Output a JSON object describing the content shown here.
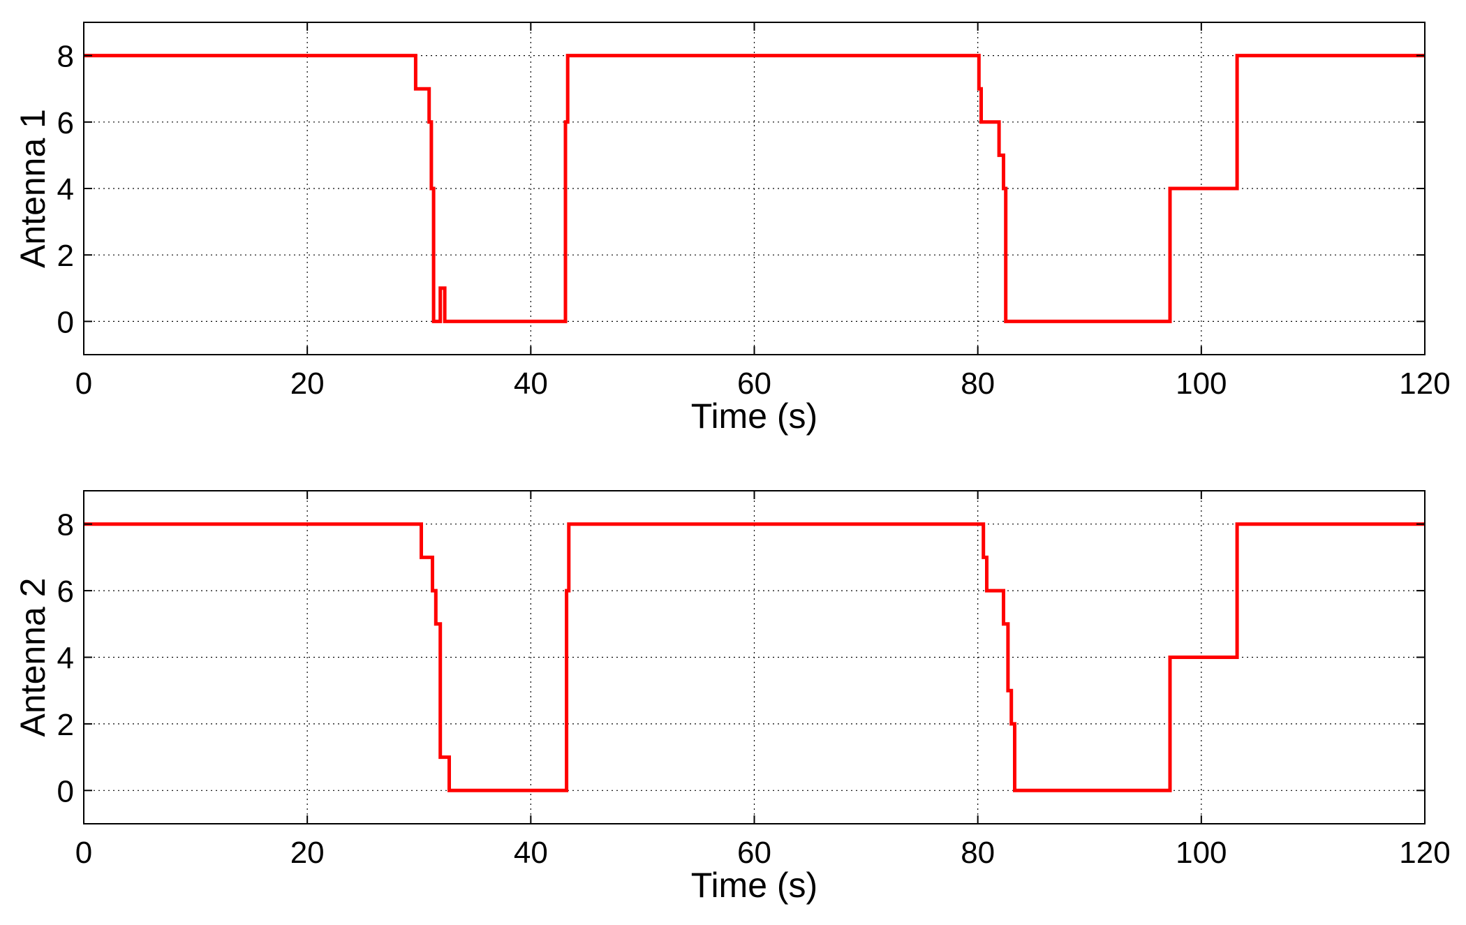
{
  "figure": {
    "background": "#ffffff",
    "line_color": "#ff0000"
  },
  "chart_data": [
    {
      "type": "line",
      "title": "",
      "xlabel": "Time (s)",
      "ylabel": "Antenna 1",
      "xlim": [
        0,
        120
      ],
      "ylim": [
        -1,
        9
      ],
      "xticks": [
        "0",
        "20",
        "40",
        "60",
        "80",
        "100",
        "120"
      ],
      "yticks": [
        "0",
        "2",
        "4",
        "6",
        "8"
      ],
      "grid": true,
      "legend": "none",
      "series": [
        {
          "color": "#ff0000",
          "step": true,
          "points": [
            [
              0,
              8
            ],
            [
              29.7,
              8
            ],
            [
              29.7,
              7
            ],
            [
              30.9,
              7
            ],
            [
              30.9,
              6
            ],
            [
              31.1,
              6
            ],
            [
              31.1,
              4
            ],
            [
              31.3,
              4
            ],
            [
              31.3,
              0
            ],
            [
              31.9,
              0
            ],
            [
              31.9,
              1
            ],
            [
              32.3,
              1
            ],
            [
              32.3,
              0
            ],
            [
              43.1,
              0
            ],
            [
              43.1,
              6
            ],
            [
              43.3,
              6
            ],
            [
              43.3,
              8
            ],
            [
              80.1,
              8
            ],
            [
              80.1,
              7
            ],
            [
              80.3,
              7
            ],
            [
              80.3,
              6
            ],
            [
              81.9,
              6
            ],
            [
              81.9,
              5
            ],
            [
              82.3,
              5
            ],
            [
              82.3,
              4
            ],
            [
              82.5,
              4
            ],
            [
              82.5,
              0
            ],
            [
              97.2,
              0
            ],
            [
              97.2,
              4
            ],
            [
              103.2,
              4
            ],
            [
              103.2,
              8
            ],
            [
              120,
              8
            ]
          ]
        }
      ]
    },
    {
      "type": "line",
      "title": "",
      "xlabel": "Time (s)",
      "ylabel": "Antenna 2",
      "xlim": [
        0,
        120
      ],
      "ylim": [
        -1,
        9
      ],
      "xticks": [
        "0",
        "20",
        "40",
        "60",
        "80",
        "100",
        "120"
      ],
      "yticks": [
        "0",
        "2",
        "4",
        "6",
        "8"
      ],
      "grid": true,
      "legend": "none",
      "series": [
        {
          "color": "#ff0000",
          "step": true,
          "points": [
            [
              0,
              8
            ],
            [
              30.2,
              8
            ],
            [
              30.2,
              7
            ],
            [
              31.2,
              7
            ],
            [
              31.2,
              6
            ],
            [
              31.5,
              6
            ],
            [
              31.5,
              5
            ],
            [
              31.9,
              5
            ],
            [
              31.9,
              1
            ],
            [
              32.7,
              1
            ],
            [
              32.7,
              0
            ],
            [
              43.2,
              0
            ],
            [
              43.2,
              6
            ],
            [
              43.4,
              6
            ],
            [
              43.4,
              8
            ],
            [
              80.5,
              8
            ],
            [
              80.5,
              7
            ],
            [
              80.8,
              7
            ],
            [
              80.8,
              6
            ],
            [
              82.3,
              6
            ],
            [
              82.3,
              5
            ],
            [
              82.7,
              5
            ],
            [
              82.7,
              3
            ],
            [
              83.0,
              3
            ],
            [
              83.0,
              2
            ],
            [
              83.3,
              2
            ],
            [
              83.3,
              0
            ],
            [
              97.2,
              0
            ],
            [
              97.2,
              4
            ],
            [
              103.2,
              4
            ],
            [
              103.2,
              8
            ],
            [
              120,
              8
            ]
          ]
        }
      ]
    }
  ]
}
